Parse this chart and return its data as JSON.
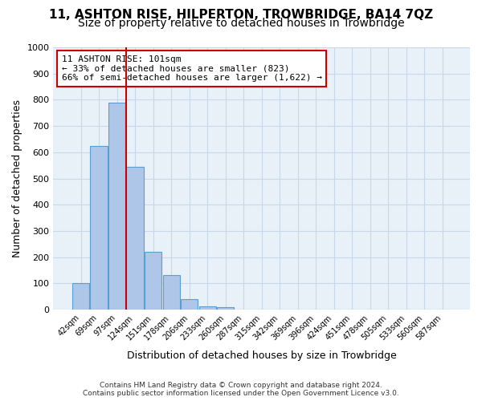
{
  "title": "11, ASHTON RISE, HILPERTON, TROWBRIDGE, BA14 7QZ",
  "subtitle": "Size of property relative to detached houses in Trowbridge",
  "xlabel": "Distribution of detached houses by size in Trowbridge",
  "ylabel": "Number of detached properties",
  "footer_line1": "Contains HM Land Registry data © Crown copyright and database right 2024.",
  "footer_line2": "Contains public sector information licensed under the Open Government Licence v3.0.",
  "bin_labels": [
    "42sqm",
    "69sqm",
    "97sqm",
    "124sqm",
    "151sqm",
    "178sqm",
    "206sqm",
    "233sqm",
    "260sqm",
    "287sqm",
    "315sqm",
    "342sqm",
    "369sqm",
    "396sqm",
    "424sqm",
    "451sqm",
    "478sqm",
    "505sqm",
    "533sqm",
    "560sqm",
    "587sqm"
  ],
  "bar_values": [
    100,
    625,
    790,
    545,
    220,
    133,
    40,
    14,
    8,
    0,
    0,
    0,
    0,
    0,
    0,
    0,
    0,
    0,
    0,
    0,
    0
  ],
  "bar_color": "#aec6e8",
  "bar_edge_color": "#5a9fd4",
  "vline_color": "#cc0000",
  "vline_pos": 2.5,
  "annotation_text": "11 ASHTON RISE: 101sqm\n← 33% of detached houses are smaller (823)\n66% of semi-detached houses are larger (1,622) →",
  "annotation_box_color": "#ffffff",
  "annotation_box_edge": "#cc0000",
  "ylim": [
    0,
    1000
  ],
  "yticks": [
    0,
    100,
    200,
    300,
    400,
    500,
    600,
    700,
    800,
    900,
    1000
  ],
  "grid_color": "#c8d8e8",
  "bg_color": "#e8f0f8",
  "title_fontsize": 11,
  "subtitle_fontsize": 10
}
